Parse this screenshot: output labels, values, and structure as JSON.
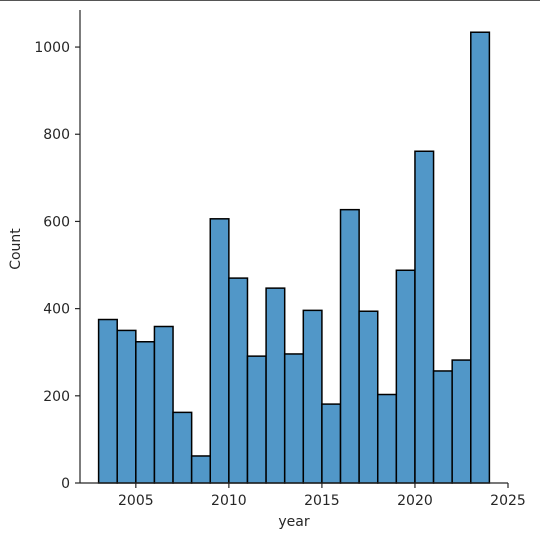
{
  "chart_data": {
    "type": "bar",
    "title": "",
    "xlabel": "year",
    "ylabel": "Count",
    "xlim": [
      2002,
      2025
    ],
    "ylim": [
      0,
      1085
    ],
    "x_ticks": [
      2005,
      2010,
      2015,
      2020,
      2025
    ],
    "y_ticks": [
      0,
      200,
      400,
      600,
      800,
      1000
    ],
    "grid": false,
    "bar_color": "#5197c8",
    "edge_color": "#000000",
    "bins": [
      {
        "x0": 2003.0,
        "x1": 2004.0,
        "count": 375
      },
      {
        "x0": 2004.0,
        "x1": 2005.0,
        "count": 350
      },
      {
        "x0": 2005.0,
        "x1": 2006.0,
        "count": 324
      },
      {
        "x0": 2006.0,
        "x1": 2007.0,
        "count": 359
      },
      {
        "x0": 2007.0,
        "x1": 2008.0,
        "count": 162
      },
      {
        "x0": 2008.0,
        "x1": 2009.0,
        "count": 62
      },
      {
        "x0": 2009.0,
        "x1": 2010.0,
        "count": 606
      },
      {
        "x0": 2010.0,
        "x1": 2011.0,
        "count": 470
      },
      {
        "x0": 2011.0,
        "x1": 2012.0,
        "count": 291
      },
      {
        "x0": 2012.0,
        "x1": 2013.0,
        "count": 447
      },
      {
        "x0": 2013.0,
        "x1": 2014.0,
        "count": 296
      },
      {
        "x0": 2014.0,
        "x1": 2015.0,
        "count": 396
      },
      {
        "x0": 2015.0,
        "x1": 2016.0,
        "count": 181
      },
      {
        "x0": 2016.0,
        "x1": 2017.0,
        "count": 627
      },
      {
        "x0": 2017.0,
        "x1": 2018.0,
        "count": 394
      },
      {
        "x0": 2018.0,
        "x1": 2019.0,
        "count": 203
      },
      {
        "x0": 2019.0,
        "x1": 2020.0,
        "count": 488
      },
      {
        "x0": 2020.0,
        "x1": 2021.0,
        "count": 761
      },
      {
        "x0": 2021.0,
        "x1": 2022.0,
        "count": 257
      },
      {
        "x0": 2022.0,
        "x1": 2023.0,
        "count": 282
      },
      {
        "x0": 2023.0,
        "x1": 2024.0,
        "count": 1034
      }
    ]
  }
}
